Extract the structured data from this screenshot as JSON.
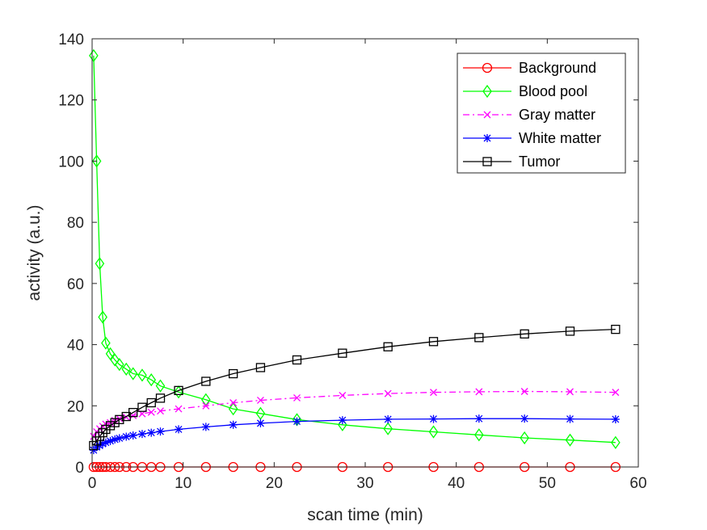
{
  "chart_data": {
    "type": "line",
    "xlabel": "scan time (min)",
    "ylabel": "activity (a.u.)",
    "xlim": [
      0,
      60
    ],
    "ylim": [
      0,
      140
    ],
    "xticks": [
      "0",
      "10",
      "20",
      "30",
      "40",
      "50",
      "60"
    ],
    "yticks": [
      "0",
      "20",
      "40",
      "60",
      "80",
      "100",
      "120",
      "140"
    ],
    "grid": false,
    "legend_position": "top-right",
    "x": [
      0.167,
      0.5,
      0.833,
      1.167,
      1.5,
      2.0,
      2.5,
      3.0,
      3.75,
      4.5,
      5.5,
      6.5,
      7.5,
      9.5,
      12.5,
      15.5,
      18.5,
      22.5,
      27.5,
      32.5,
      37.5,
      42.5,
      47.5,
      52.5,
      57.5
    ],
    "series": [
      {
        "name": "Background",
        "color": "#ff0000",
        "marker": "circle",
        "dash": "solid",
        "values": [
          0,
          0,
          0,
          0,
          0,
          0,
          0,
          0,
          0,
          0,
          0,
          0,
          0,
          0,
          0,
          0,
          0,
          0,
          0,
          0,
          0,
          0,
          0,
          0,
          0
        ]
      },
      {
        "name": "Blood pool",
        "color": "#00ff00",
        "marker": "diamond",
        "dash": "solid",
        "values": [
          134.5,
          100,
          66.5,
          49,
          40.5,
          37,
          35,
          33.5,
          32,
          30.5,
          30,
          28.5,
          26.5,
          24.5,
          22,
          19,
          17.5,
          15.5,
          13.8,
          12.5,
          11.5,
          10.5,
          9.5,
          8.8,
          8
        ]
      },
      {
        "name": "Gray matter",
        "color": "#ff00ff",
        "marker": "x",
        "dash": "dashdot",
        "values": [
          10,
          11.5,
          12.5,
          13.3,
          14,
          14.5,
          15.2,
          15.8,
          16.3,
          16.8,
          17.4,
          17.9,
          18.3,
          19,
          20,
          21,
          21.8,
          22.6,
          23.4,
          24,
          24.4,
          24.6,
          24.7,
          24.6,
          24.4
        ]
      },
      {
        "name": "White matter",
        "color": "#0000ff",
        "marker": "asterisk",
        "dash": "solid",
        "values": [
          5.5,
          6.5,
          7,
          7.6,
          8,
          8.5,
          9,
          9.4,
          9.9,
          10.3,
          10.8,
          11.2,
          11.6,
          12.3,
          13.1,
          13.8,
          14.3,
          14.9,
          15.3,
          15.6,
          15.7,
          15.8,
          15.8,
          15.7,
          15.6
        ]
      },
      {
        "name": "Tumor",
        "color": "#000000",
        "marker": "square",
        "dash": "solid",
        "values": [
          7,
          8.5,
          10,
          11.2,
          12.3,
          13.5,
          14.5,
          15.5,
          16.5,
          17.8,
          19.5,
          21,
          22.5,
          25,
          28,
          30.5,
          32.5,
          35,
          37.2,
          39.3,
          41,
          42.3,
          43.5,
          44.4,
          45
        ]
      }
    ]
  }
}
